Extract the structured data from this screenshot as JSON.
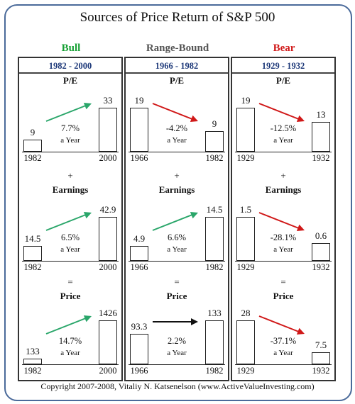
{
  "title": "Sources of  Price Return of S&P 500",
  "colors": {
    "frame": "#4a6a9a",
    "period_text": "#1f3a7a",
    "up_arrow": "#2aa66a",
    "down_arrow": "#d01818",
    "flat_arrow": "#111111",
    "bull": "#16a034",
    "range": "#555555",
    "bear": "#d01818"
  },
  "regimes": [
    {
      "label": "Bull",
      "color": "#16a034",
      "period": "1982 - 2000",
      "start_year": "1982",
      "end_year": "2000",
      "pe": {
        "start": "9",
        "end": "33",
        "rate": "7.7%",
        "sub": "a Year",
        "dir": "up",
        "s": 9,
        "e": 33
      },
      "earnings": {
        "start": "14.5",
        "end": "42.9",
        "rate": "6.5%",
        "sub": "a Year",
        "dir": "up",
        "s": 14.5,
        "e": 42.9
      },
      "price": {
        "start": "133",
        "end": "1426",
        "rate": "14.7%",
        "sub": "a Year",
        "dir": "up",
        "s": 133,
        "e": 1426
      }
    },
    {
      "label": "Range-Bound",
      "color": "#555555",
      "period": "1966 - 1982",
      "start_year": "1966",
      "end_year": "1982",
      "pe": {
        "start": "19",
        "end": "9",
        "rate": "-4.2%",
        "sub": "a Year",
        "dir": "down",
        "s": 19,
        "e": 9
      },
      "earnings": {
        "start": "4.9",
        "end": "14.5",
        "rate": "6.6%",
        "sub": "a Year",
        "dir": "up",
        "s": 4.9,
        "e": 14.5
      },
      "price": {
        "start": "93.3",
        "end": "133",
        "rate": "2.2%",
        "sub": "a Year",
        "dir": "flat",
        "s": 93.3,
        "e": 133
      }
    },
    {
      "label": "Bear",
      "color": "#d01818",
      "period": "1929 - 1932",
      "start_year": "1929",
      "end_year": "1932",
      "pe": {
        "start": "19",
        "end": "13",
        "rate": "-12.5%",
        "sub": "a Year",
        "dir": "down",
        "s": 19,
        "e": 13
      },
      "earnings": {
        "start": "1.5",
        "end": "0.6",
        "rate": "-28.1%",
        "sub": "a Year",
        "dir": "down",
        "s": 1.5,
        "e": 0.6
      },
      "price": {
        "start": "28",
        "end": "7.5",
        "rate": "-37.1%",
        "sub": "a Year",
        "dir": "down",
        "s": 28,
        "e": 7.5
      }
    }
  ],
  "section_labels": {
    "pe": "P/E",
    "earnings": "Earnings",
    "price": "Price"
  },
  "operators": {
    "plus": "+",
    "equals": "="
  },
  "copyright": "Copyright 2007-2008, Vitaliy N. Katsenelson (www.ActiveValueInvesting.com)"
}
